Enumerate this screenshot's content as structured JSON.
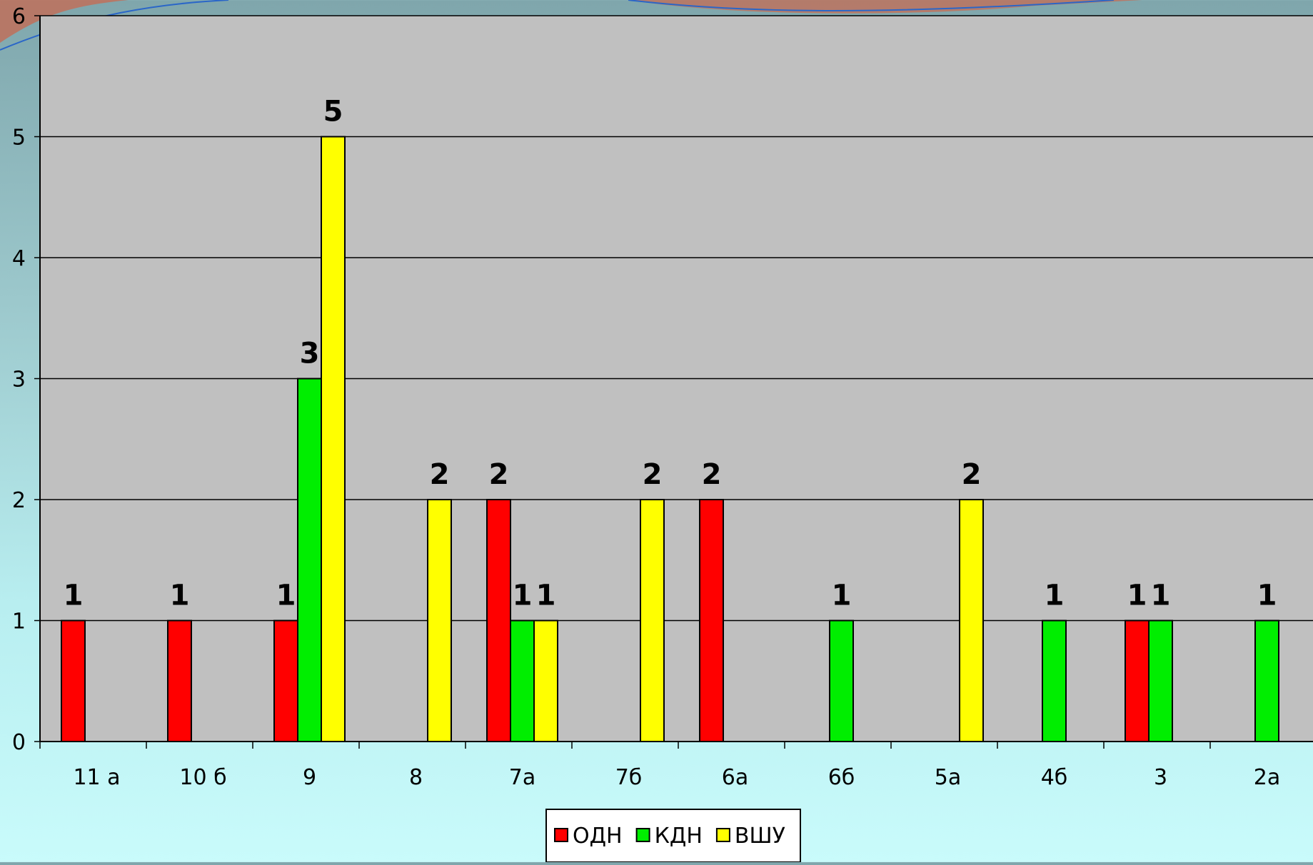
{
  "chart_data": {
    "type": "bar",
    "title": "",
    "xlabel": "",
    "ylabel": "",
    "ylim": [
      0,
      6
    ],
    "yticks": [
      0,
      1,
      2,
      3,
      4,
      5,
      6
    ],
    "grid": true,
    "legend_position": "bottom",
    "categories": [
      "11 а",
      "10 б",
      "9",
      "8",
      "7а",
      "7б",
      "6а",
      "6б",
      "5а",
      "4б",
      "3",
      "2а"
    ],
    "series": [
      {
        "name": "ОДН",
        "color": "#ff0000",
        "values": [
          1,
          1,
          1,
          null,
          2,
          null,
          2,
          null,
          null,
          null,
          1,
          null
        ]
      },
      {
        "name": "КДН",
        "color": "#00ee00",
        "values": [
          null,
          null,
          3,
          null,
          1,
          null,
          null,
          1,
          null,
          1,
          1,
          1
        ]
      },
      {
        "name": "ВШУ",
        "color": "#ffff00",
        "values": [
          null,
          null,
          5,
          2,
          1,
          2,
          null,
          null,
          2,
          null,
          null,
          null
        ]
      }
    ],
    "data_labels": true,
    "plot_background": "#c0c0c0"
  }
}
